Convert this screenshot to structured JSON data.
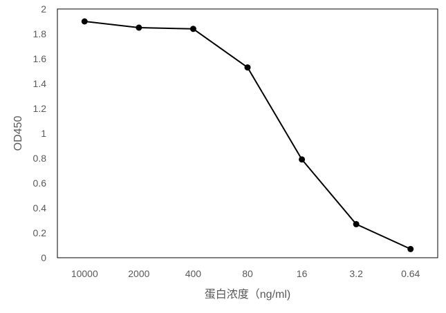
{
  "chart_data": {
    "type": "line",
    "title": "",
    "xlabel": "蛋白浓度（ng/ml)",
    "ylabel": "OD450",
    "categories": [
      "10000",
      "2000",
      "400",
      "80",
      "16",
      "3.2",
      "0.64"
    ],
    "y_ticks": [
      "0",
      "0.2",
      "0.4",
      "0.6",
      "0.8",
      "1",
      "1.2",
      "1.4",
      "1.6",
      "1.8",
      "2"
    ],
    "ylim": [
      0,
      2
    ],
    "grid": false,
    "legend": "none",
    "series": [
      {
        "values": [
          1.9,
          1.85,
          1.84,
          1.53,
          0.79,
          0.27,
          0.07
        ],
        "color": "#000000",
        "marker": "circle"
      }
    ]
  }
}
